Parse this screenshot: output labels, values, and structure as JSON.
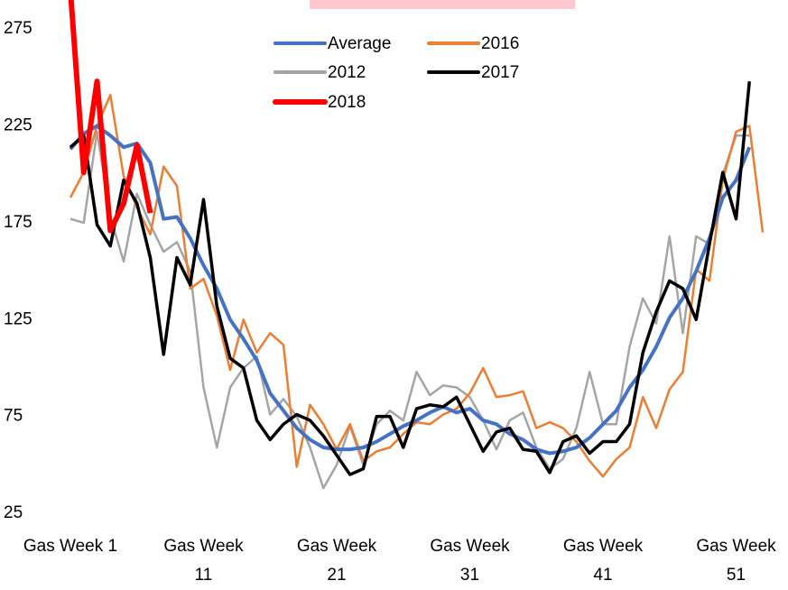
{
  "chart_data": {
    "type": "line",
    "categories": [
      "Gas Week 1",
      null,
      null,
      null,
      null,
      null,
      null,
      null,
      null,
      null,
      "Gas Week 11",
      null,
      null,
      null,
      null,
      null,
      null,
      null,
      null,
      null,
      "Gas Week 21",
      null,
      null,
      null,
      null,
      null,
      null,
      null,
      null,
      null,
      "Gas Week 31",
      null,
      null,
      null,
      null,
      null,
      null,
      null,
      null,
      null,
      "Gas Week 41",
      null,
      null,
      null,
      null,
      null,
      null,
      null,
      null,
      null,
      "Gas Week 51",
      null,
      null
    ],
    "ylim": [
      25,
      290
    ],
    "yticks": [
      25,
      75,
      125,
      175,
      225,
      275
    ],
    "grid": false,
    "series": [
      {
        "name": "Average",
        "color": "#4472c4",
        "values": [
          213,
          221,
          225,
          220,
          214,
          216,
          206,
          177,
          178,
          167,
          153,
          141,
          125,
          115,
          104,
          87,
          78,
          69,
          63,
          59,
          58,
          58,
          59,
          62,
          66,
          70,
          73,
          77,
          80,
          77,
          79,
          73,
          71,
          66,
          63,
          58,
          56,
          57,
          59,
          64,
          71,
          78,
          90,
          99,
          111,
          126,
          136,
          150,
          167,
          188,
          197,
          214,
          null
        ]
      },
      {
        "name": "2016",
        "color": "#ed7d31",
        "values": [
          188,
          201,
          225,
          241,
          199,
          183,
          169,
          204,
          194,
          141,
          146,
          127,
          99,
          125,
          108,
          118,
          112,
          49,
          81,
          71,
          58,
          71,
          52,
          57,
          59,
          66,
          72,
          71,
          76,
          79,
          87,
          100,
          85,
          86,
          88,
          69,
          72,
          69,
          62,
          52,
          44,
          53,
          59,
          85,
          69,
          89,
          98,
          151,
          145,
          197,
          222,
          225,
          170
        ]
      },
      {
        "name": "2012",
        "color": "#a5a5a5",
        "values": [
          177,
          175,
          222,
          178,
          155,
          190,
          174,
          160,
          165,
          150,
          90,
          59,
          90,
          100,
          106,
          76,
          84,
          75,
          59,
          38,
          50,
          70,
          50,
          71,
          78,
          73,
          98,
          86,
          91,
          90,
          85,
          73,
          58,
          73,
          77,
          59,
          48,
          53,
          69,
          98,
          71,
          71,
          111,
          136,
          123,
          168,
          118,
          168,
          164,
          200,
          220,
          220,
          null
        ]
      },
      {
        "name": "2017",
        "color": "#000000",
        "values": [
          214,
          220,
          174,
          163,
          197,
          185,
          157,
          107,
          157,
          143,
          187,
          132,
          105,
          100,
          73,
          63,
          71,
          76,
          73,
          65,
          55,
          45,
          48,
          75,
          75,
          59,
          79,
          81,
          80,
          85,
          71,
          57,
          67,
          69,
          58,
          57,
          46,
          62,
          65,
          56,
          62,
          62,
          71,
          108,
          129,
          145,
          141,
          125,
          164,
          201,
          177,
          248,
          null
        ]
      },
      {
        "name": "2018",
        "color": "#ff0000",
        "values": [
          295,
          201,
          248,
          171,
          185,
          215,
          180,
          null,
          null,
          null,
          null,
          null,
          null,
          null,
          null,
          null,
          null,
          null,
          null,
          null,
          null,
          null,
          null,
          null,
          null,
          null,
          null,
          null,
          null,
          null,
          null,
          null,
          null,
          null,
          null,
          null,
          null,
          null,
          null,
          null,
          null,
          null,
          null,
          null,
          null,
          null,
          null,
          null,
          null,
          null,
          null,
          null,
          null
        ]
      }
    ]
  }
}
